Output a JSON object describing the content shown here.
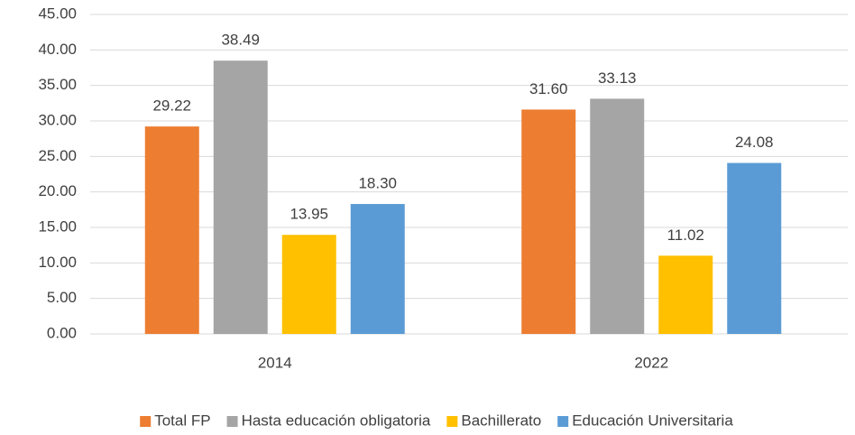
{
  "chart_data": {
    "type": "bar",
    "categories": [
      "2014",
      "2022"
    ],
    "series": [
      {
        "name": "Total FP",
        "color": "#ed7d31",
        "values": [
          29.22,
          31.6
        ],
        "value_labels": [
          "29.22",
          "31.60"
        ]
      },
      {
        "name": "Hasta educación obligatoria",
        "color": "#a5a5a5",
        "values": [
          38.49,
          33.13
        ],
        "value_labels": [
          "38.49",
          "33.13"
        ]
      },
      {
        "name": "Bachillerato",
        "color": "#ffc000",
        "values": [
          13.95,
          11.02
        ],
        "value_labels": [
          "13.95",
          "11.02"
        ]
      },
      {
        "name": "Educación Universitaria",
        "color": "#5b9bd5",
        "values": [
          18.3,
          24.08
        ],
        "value_labels": [
          "18.30",
          "24.08"
        ]
      }
    ],
    "ylim": [
      0,
      45
    ],
    "yticks": [
      {
        "value": 0,
        "label": "0.00"
      },
      {
        "value": 5,
        "label": "5.00"
      },
      {
        "value": 10,
        "label": "10.00"
      },
      {
        "value": 15,
        "label": "15.00"
      },
      {
        "value": 20,
        "label": "20.00"
      },
      {
        "value": 25,
        "label": "25.00"
      },
      {
        "value": 30,
        "label": "30.00"
      },
      {
        "value": 35,
        "label": "35.00"
      },
      {
        "value": 40,
        "label": "40.00"
      },
      {
        "value": 45,
        "label": "45.00"
      }
    ],
    "grid": true,
    "legend": "bottom"
  }
}
